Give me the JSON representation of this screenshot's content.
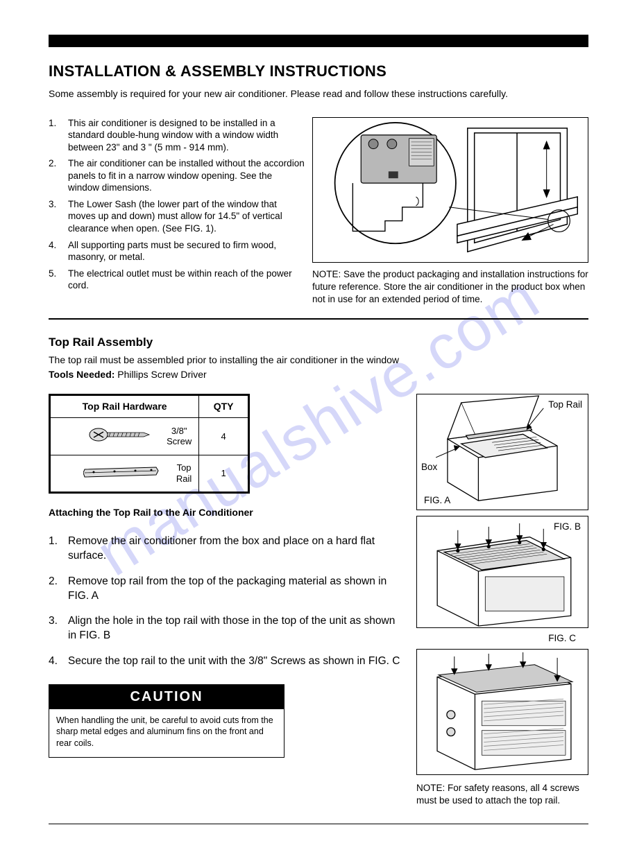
{
  "watermark": "manualshive.com",
  "page_title": "INSTALLATION & ASSEMBLY INSTRUCTIONS",
  "intro": "Some assembly is required for your new air conditioner. Please read and follow these instructions carefully.",
  "main_list": [
    "This air conditioner is designed to be installed in a standard double-hung window with a window width between 23\" and 3   \" (5     mm - 914 mm).",
    "The air conditioner can be installed without the accordion panels to fit in a narrow window opening. See the window dimensions.",
    "The Lower Sash (the lower part of the window that moves up and down) must allow for 14.5\" of vertical clearance when open. (See FIG. 1).",
    "All supporting parts must be secured to firm wood, masonry, or metal.",
    "The electrical outlet must be within reach of the power cord."
  ],
  "diagram_note": "NOTE: Save the product packaging and installation instructions for future reference. Store the air conditioner in the product box when not in use for an extended period of time.",
  "section2": {
    "title": "Top Rail Assembly",
    "intro": "The top rail must be assembled prior to installing the air conditioner in the window",
    "tools_label": "Tools Needed:",
    "tools_value": " Phillips Screw Driver",
    "table": {
      "header_hw": "Top Rail Hardware",
      "header_qty": "QTY",
      "rows": [
        {
          "label": "3/8\"\nScrew",
          "qty": "4"
        },
        {
          "label": "Top\nRail",
          "qty": "1"
        }
      ]
    },
    "attach_title": "Attaching the Top Rail to the Air Conditioner",
    "steps": [
      "Remove the air conditioner from the box and place on a hard flat surface.",
      "Remove top rail from the top of the packaging material as shown in FIG. A",
      "Align the hole in the top rail with those in the top of the unit as shown in FIG. B",
      "Secure the top rail to the unit with the 3/8\" Screws as shown in FIG. C"
    ],
    "caution_title": "CAUTION",
    "caution_body": "When handling the unit, be careful to avoid cuts from the sharp metal edges and aluminum fins on the front and rear coils.",
    "fig_labels": {
      "top_rail": "Top Rail",
      "box": "Box",
      "fig_a": "FIG. A",
      "fig_b": "FIG. B",
      "fig_c": "FIG. C"
    },
    "note_bottom": "NOTE: For safety reasons, all 4 screws must be used to attach the top rail."
  },
  "colors": {
    "text": "#000000",
    "background": "#ffffff",
    "watermark": "#8a90f0"
  }
}
